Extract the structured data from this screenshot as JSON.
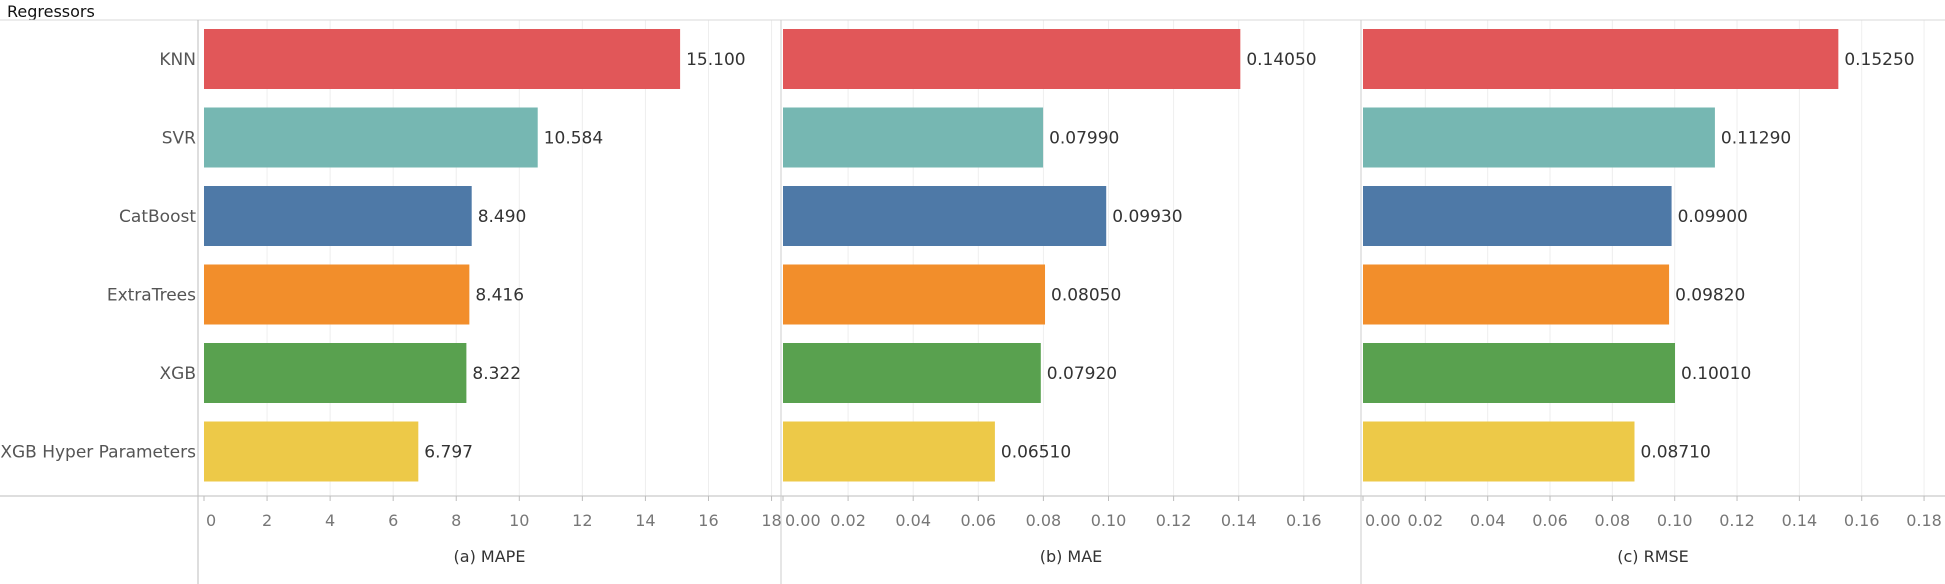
{
  "header_title": "Regressors",
  "chart_data": {
    "type": "bar",
    "orientation": "horizontal",
    "grid": true,
    "categories": [
      "KNN",
      "SVR",
      "CatBoost",
      "ExtraTrees",
      "XGB",
      "XGB Hyper Parameters"
    ],
    "colors": [
      "#e15759",
      "#76b7b2",
      "#4e79a7",
      "#f28e2b",
      "#59a14f",
      "#edc948"
    ],
    "panels": [
      {
        "xlabel": "(a) MAPE",
        "xlim": [
          0,
          18
        ],
        "ticks": [
          0,
          2,
          4,
          6,
          8,
          10,
          12,
          14,
          16,
          18
        ],
        "tick_labels": [
          "0",
          "2",
          "4",
          "6",
          "8",
          "10",
          "12",
          "14",
          "16",
          "18"
        ],
        "values": [
          15.1,
          10.584,
          8.49,
          8.416,
          8.322,
          6.797
        ],
        "value_labels": [
          "15.100",
          "10.584",
          "8.490",
          "8.416",
          "8.322",
          "6.797"
        ]
      },
      {
        "xlabel": "(b) MAE",
        "xlim": [
          0,
          0.17
        ],
        "ticks": [
          0,
          0.02,
          0.04,
          0.06,
          0.08,
          0.1,
          0.12,
          0.14,
          0.16
        ],
        "tick_labels": [
          "0.00",
          "0.02",
          "0.04",
          "0.06",
          "0.08",
          "0.10",
          "0.12",
          "0.14",
          "0.16"
        ],
        "values": [
          0.1405,
          0.0799,
          0.0993,
          0.0805,
          0.0792,
          0.0651
        ],
        "value_labels": [
          "0.14050",
          "0.07990",
          "0.09930",
          "0.08050",
          "0.07920",
          "0.06510"
        ]
      },
      {
        "xlabel": "(c) RMSE",
        "xlim": [
          0,
          0.18
        ],
        "ticks": [
          0,
          0.02,
          0.04,
          0.06,
          0.08,
          0.1,
          0.12,
          0.14,
          0.16,
          0.18
        ],
        "tick_labels": [
          "0.00",
          "0.02",
          "0.04",
          "0.06",
          "0.08",
          "0.10",
          "0.12",
          "0.14",
          "0.16",
          "0.18"
        ],
        "values": [
          0.1525,
          0.1129,
          0.099,
          0.0982,
          0.1001,
          0.0871
        ],
        "value_labels": [
          "0.15250",
          "0.11290",
          "0.09900",
          "0.09820",
          "0.10010",
          "0.08710"
        ]
      }
    ]
  }
}
